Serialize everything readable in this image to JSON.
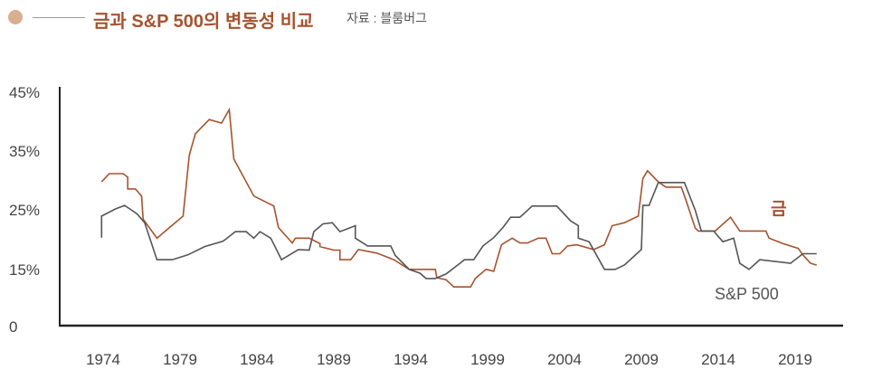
{
  "header": {
    "title": "금과 S&P 500의 변동성 비교",
    "source": "자료 : 블룸버그"
  },
  "colors": {
    "gold": "#a6532e",
    "sp500": "#555555",
    "marker": "#d9ae91"
  },
  "chart_data": {
    "type": "line",
    "title": "금과 S&P 500의 변동성 비교",
    "xlabel": "",
    "ylabel": "",
    "x_ticks": [
      "1974",
      "1979",
      "1984",
      "1989",
      "1994",
      "1999",
      "2004",
      "2009",
      "2014",
      "2019"
    ],
    "y_ticks": [
      "0",
      "15%",
      "25%",
      "35%",
      "45%"
    ],
    "y_tick_values": [
      0,
      15,
      25,
      35,
      45
    ],
    "xlim": [
      1974,
      2019
    ],
    "grid": false,
    "series": [
      {
        "name": "금",
        "points": [
          [
            1973.9,
            29.6
          ],
          [
            1974.4,
            31.0
          ],
          [
            1975.3,
            31.0
          ],
          [
            1975.6,
            30.4
          ],
          [
            1975.6,
            28.4
          ],
          [
            1976.1,
            28.4
          ],
          [
            1976.5,
            27.2
          ],
          [
            1976.6,
            23.3
          ],
          [
            1977.5,
            20.1
          ],
          [
            1979.2,
            23.8
          ],
          [
            1979.6,
            34.1
          ],
          [
            1980.0,
            37.8
          ],
          [
            1980.9,
            40.2
          ],
          [
            1981.7,
            39.6
          ],
          [
            1982.2,
            41.9
          ],
          [
            1982.5,
            33.5
          ],
          [
            1983.8,
            27.2
          ],
          [
            1985.1,
            25.5
          ],
          [
            1985.4,
            21.9
          ],
          [
            1986.3,
            19.3
          ],
          [
            1986.5,
            20.1
          ],
          [
            1987.4,
            20.1
          ],
          [
            1988.1,
            19.2
          ],
          [
            1988.1,
            18.7
          ],
          [
            1989.0,
            18.1
          ],
          [
            1989.4,
            18.1
          ],
          [
            1989.4,
            16.5
          ],
          [
            1990.1,
            16.5
          ],
          [
            1990.6,
            18.2
          ],
          [
            1991.8,
            17.6
          ],
          [
            1992.9,
            16.5
          ],
          [
            1993.9,
            14.8
          ],
          [
            1995.6,
            14.8
          ],
          [
            1995.7,
            12.6
          ],
          [
            1996.3,
            12.1
          ],
          [
            1996.8,
            10.2
          ],
          [
            1997.9,
            10.2
          ],
          [
            1998.2,
            12.4
          ],
          [
            1998.9,
            14.8
          ],
          [
            1999.4,
            14.3
          ],
          [
            1999.9,
            19.0
          ],
          [
            2000.6,
            20.1
          ],
          [
            2001.1,
            19.3
          ],
          [
            2001.6,
            19.3
          ],
          [
            2002.3,
            20.1
          ],
          [
            2002.8,
            20.1
          ],
          [
            2003.2,
            17.5
          ],
          [
            2003.7,
            17.5
          ],
          [
            2004.2,
            18.8
          ],
          [
            2004.8,
            19.0
          ],
          [
            2005.9,
            18.2
          ],
          [
            2006.6,
            19.0
          ],
          [
            2007.1,
            22.2
          ],
          [
            2007.9,
            22.7
          ],
          [
            2008.8,
            23.8
          ],
          [
            2009.1,
            30.2
          ],
          [
            2009.4,
            31.5
          ],
          [
            2010.1,
            29.6
          ],
          [
            2010.6,
            28.7
          ],
          [
            2011.6,
            28.7
          ],
          [
            2011.9,
            26.5
          ],
          [
            2012.5,
            21.8
          ],
          [
            2012.7,
            21.3
          ],
          [
            2013.8,
            21.3
          ],
          [
            2014.8,
            23.6
          ],
          [
            2015.4,
            21.3
          ],
          [
            2017.1,
            21.3
          ],
          [
            2017.3,
            20.1
          ],
          [
            2018.2,
            19.2
          ],
          [
            2019.2,
            18.4
          ],
          [
            2019.5,
            17.3
          ],
          [
            2020.0,
            15.9
          ],
          [
            2020.4,
            15.6
          ]
        ]
      },
      {
        "name": "S&P 500",
        "points": [
          [
            1973.9,
            20.2
          ],
          [
            1973.9,
            23.8
          ],
          [
            1974.8,
            25.0
          ],
          [
            1975.4,
            25.6
          ],
          [
            1976.2,
            24.2
          ],
          [
            1976.7,
            22.7
          ],
          [
            1977.5,
            16.5
          ],
          [
            1978.5,
            16.5
          ],
          [
            1979.5,
            17.3
          ],
          [
            1980.6,
            18.7
          ],
          [
            1981.8,
            19.6
          ],
          [
            1982.1,
            20.2
          ],
          [
            1982.6,
            21.2
          ],
          [
            1983.3,
            21.2
          ],
          [
            1983.8,
            20.1
          ],
          [
            1984.2,
            21.2
          ],
          [
            1984.9,
            20.1
          ],
          [
            1985.6,
            16.5
          ],
          [
            1986.7,
            18.2
          ],
          [
            1987.4,
            18.1
          ],
          [
            1987.7,
            21.2
          ],
          [
            1988.3,
            22.5
          ],
          [
            1988.9,
            22.7
          ],
          [
            1989.4,
            21.2
          ],
          [
            1990.4,
            22.2
          ],
          [
            1990.4,
            20.1
          ],
          [
            1991.2,
            18.8
          ],
          [
            1992.7,
            18.8
          ],
          [
            1993.0,
            17.2
          ],
          [
            1993.9,
            14.8
          ],
          [
            1994.6,
            13.8
          ],
          [
            1995.0,
            12.4
          ],
          [
            1995.6,
            12.4
          ],
          [
            1996.3,
            13.6
          ],
          [
            1997.2,
            15.9
          ],
          [
            1997.5,
            16.5
          ],
          [
            1998.1,
            16.5
          ],
          [
            1998.7,
            18.8
          ],
          [
            1999.4,
            20.2
          ],
          [
            2000.0,
            21.9
          ],
          [
            2000.5,
            23.6
          ],
          [
            2001.1,
            23.6
          ],
          [
            2001.9,
            25.5
          ],
          [
            2003.5,
            25.5
          ],
          [
            2004.4,
            23.0
          ],
          [
            2004.9,
            22.2
          ],
          [
            2004.9,
            20.1
          ],
          [
            2005.6,
            19.5
          ],
          [
            2006.6,
            14.8
          ],
          [
            2007.3,
            14.8
          ],
          [
            2007.9,
            15.6
          ],
          [
            2009.0,
            18.2
          ],
          [
            2009.1,
            25.6
          ],
          [
            2009.5,
            25.6
          ],
          [
            2010.1,
            29.5
          ],
          [
            2011.8,
            29.5
          ],
          [
            2012.5,
            24.8
          ],
          [
            2012.9,
            21.3
          ],
          [
            2013.7,
            21.3
          ],
          [
            2014.3,
            19.5
          ],
          [
            2015.0,
            20.1
          ],
          [
            2015.4,
            15.9
          ],
          [
            2016.0,
            14.8
          ],
          [
            2016.7,
            16.5
          ],
          [
            2018.7,
            15.9
          ],
          [
            2019.5,
            17.5
          ],
          [
            2020.4,
            17.5
          ]
        ]
      }
    ],
    "annotations": [
      "금",
      "S&P 500"
    ]
  }
}
